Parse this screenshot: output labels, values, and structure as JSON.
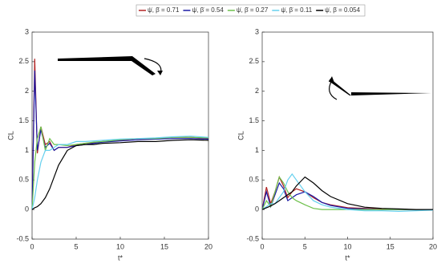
{
  "chart_data": [
    {
      "type": "line",
      "ylabel": "CL",
      "xlabel": "t*",
      "xlim": [
        0,
        20
      ],
      "xticks": [
        0,
        5,
        10,
        15,
        20
      ],
      "ylim": [
        -0.5,
        3
      ],
      "yticks": [
        -0.5,
        0,
        0.5,
        1,
        1.5,
        2,
        2.5,
        3
      ],
      "x": [
        0,
        0.3,
        0.6,
        1,
        1.5,
        2,
        2.5,
        3,
        4,
        5,
        6,
        7,
        8,
        10,
        12,
        14,
        16,
        18,
        20
      ],
      "series": [
        {
          "name": "ψ̇, β̇ = 0.71",
          "color": "#b22222",
          "values": [
            0,
            2.55,
            0.95,
            1.4,
            1.1,
            1.15,
            1.0,
            1.05,
            1.05,
            1.1,
            1.12,
            1.13,
            1.15,
            1.17,
            1.2,
            1.2,
            1.22,
            1.22,
            1.2
          ]
        },
        {
          "name": "ψ̇, β̇ = 0.54",
          "color": "#1a1aa6",
          "values": [
            0,
            2.35,
            1.0,
            1.35,
            1.05,
            1.12,
            1.0,
            1.05,
            1.05,
            1.08,
            1.1,
            1.12,
            1.14,
            1.16,
            1.18,
            1.19,
            1.2,
            1.2,
            1.19
          ]
        },
        {
          "name": "ψ̇, β̇ = 0.27",
          "color": "#6cc04a",
          "values": [
            0,
            0.8,
            1.2,
            1.4,
            1.0,
            1.2,
            1.1,
            1.1,
            1.08,
            1.1,
            1.12,
            1.14,
            1.15,
            1.18,
            1.2,
            1.2,
            1.22,
            1.22,
            1.21
          ]
        },
        {
          "name": "ψ̇, β̇ = 0.11",
          "color": "#66d0ee",
          "values": [
            0,
            0.2,
            0.5,
            0.8,
            1.0,
            1.0,
            1.05,
            1.1,
            1.1,
            1.15,
            1.15,
            1.16,
            1.17,
            1.19,
            1.2,
            1.21,
            1.23,
            1.24,
            1.22
          ]
        },
        {
          "name": "ψ̇, β̇ = 0.054",
          "color": "#000000",
          "values": [
            0,
            0.03,
            0.05,
            0.1,
            0.2,
            0.35,
            0.55,
            0.75,
            1.0,
            1.08,
            1.1,
            1.1,
            1.12,
            1.13,
            1.15,
            1.15,
            1.17,
            1.18,
            1.17
          ]
        }
      ]
    },
    {
      "type": "line",
      "ylabel": "CL",
      "xlabel": "t*",
      "xlim": [
        0,
        20
      ],
      "xticks": [
        0,
        5,
        10,
        15,
        20
      ],
      "ylim": [
        -0.5,
        3
      ],
      "yticks": [
        -0.5,
        0,
        0.5,
        1,
        1.5,
        2,
        2.5,
        3
      ],
      "x": [
        0,
        0.5,
        1,
        1.5,
        2,
        2.5,
        3,
        3.5,
        4,
        5,
        6,
        7,
        8,
        10,
        12,
        14,
        16,
        18,
        20
      ],
      "series": [
        {
          "color": "#b22222",
          "values": [
            0,
            0.38,
            0.1,
            0.3,
            0.55,
            0.4,
            0.2,
            0.3,
            0.35,
            0.3,
            0.2,
            0.12,
            0.08,
            0.03,
            0.02,
            0.01,
            0,
            0,
            0
          ]
        },
        {
          "color": "#1a1aa6",
          "values": [
            0,
            0.3,
            0.05,
            0.25,
            0.45,
            0.35,
            0.15,
            0.2,
            0.25,
            0.3,
            0.22,
            0.12,
            0.07,
            0.02,
            0.01,
            0,
            0,
            0,
            0
          ]
        },
        {
          "color": "#6cc04a",
          "values": [
            0,
            0.15,
            0.05,
            0.3,
            0.55,
            0.45,
            0.3,
            0.2,
            0.15,
            0.08,
            0.02,
            0,
            0,
            0,
            0,
            0,
            0,
            0,
            0
          ]
        },
        {
          "color": "#66d0ee",
          "values": [
            0,
            0.05,
            0.1,
            0.1,
            0.2,
            0.3,
            0.5,
            0.6,
            0.5,
            0.3,
            0.15,
            0.08,
            0.04,
            0,
            -0.02,
            -0.02,
            -0.03,
            -0.02,
            -0.01
          ]
        },
        {
          "color": "#000000",
          "values": [
            0,
            0.03,
            0.06,
            0.1,
            0.15,
            0.2,
            0.25,
            0.3,
            0.4,
            0.55,
            0.45,
            0.32,
            0.22,
            0.1,
            0.04,
            0.02,
            0.01,
            0,
            0
          ]
        }
      ]
    }
  ]
}
